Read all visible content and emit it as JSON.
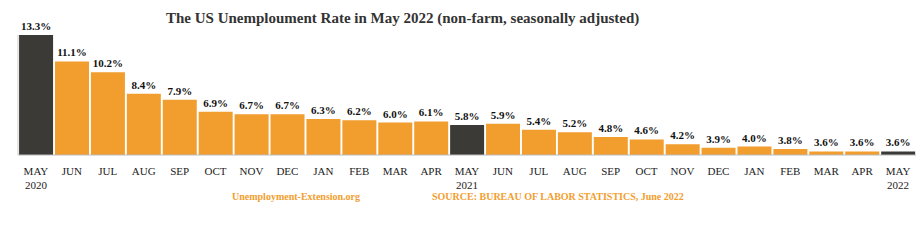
{
  "chart_data": {
    "type": "bar",
    "title": "The US Unemploument Rate in May 2022 (non-farm, seasonally adjusted)",
    "categories": [
      "MAY\n2020",
      "JUN",
      "JUL",
      "AUG",
      "SEP",
      "OCT",
      "NOV",
      "DEC",
      "JAN",
      "FEB",
      "MAR",
      "APR",
      "MAY\n2021",
      "JUN",
      "JUL",
      "AUG",
      "SEP",
      "OCT",
      "NOV",
      "DEC",
      "JAN",
      "FEB",
      "MAR",
      "APR",
      "MAY\n2022"
    ],
    "values": [
      13.3,
      11.1,
      10.2,
      8.4,
      7.9,
      6.9,
      6.7,
      6.7,
      6.3,
      6.2,
      6.0,
      6.1,
      5.8,
      5.9,
      5.4,
      5.2,
      4.8,
      4.6,
      4.2,
      3.9,
      4.0,
      3.8,
      3.6,
      3.6,
      3.6
    ],
    "value_labels": [
      "13.3%",
      "11.1%",
      "10.2%",
      "8.4%",
      "7.9%",
      "6.9%",
      "6.7%",
      "6.7%",
      "6.3%",
      "6.2%",
      "6.0%",
      "6.1%",
      "5.8%",
      "5.9%",
      "5.4%",
      "5.2%",
      "4.8%",
      "4.6%",
      "4.2%",
      "3.9%",
      "4.0%",
      "3.8%",
      "3.6%",
      "3.6%",
      "3.6%"
    ],
    "colors": [
      "#3b3a36",
      "#f29e2e",
      "#f29e2e",
      "#f29e2e",
      "#f29e2e",
      "#f29e2e",
      "#f29e2e",
      "#f29e2e",
      "#f29e2e",
      "#f29e2e",
      "#f29e2e",
      "#f29e2e",
      "#3b3a36",
      "#f29e2e",
      "#f29e2e",
      "#f29e2e",
      "#f29e2e",
      "#f29e2e",
      "#f29e2e",
      "#f29e2e",
      "#f29e2e",
      "#f29e2e",
      "#f29e2e",
      "#f29e2e",
      "#3b3a36"
    ],
    "ylim": [
      3.3,
      13.3
    ],
    "grid": false,
    "data_labels": true,
    "tick_labels": "x",
    "annotations": [
      "Unemployment-Extension.org",
      "SOURCE: BUREAU OF LABOR STATISTICS, June 2022"
    ]
  }
}
